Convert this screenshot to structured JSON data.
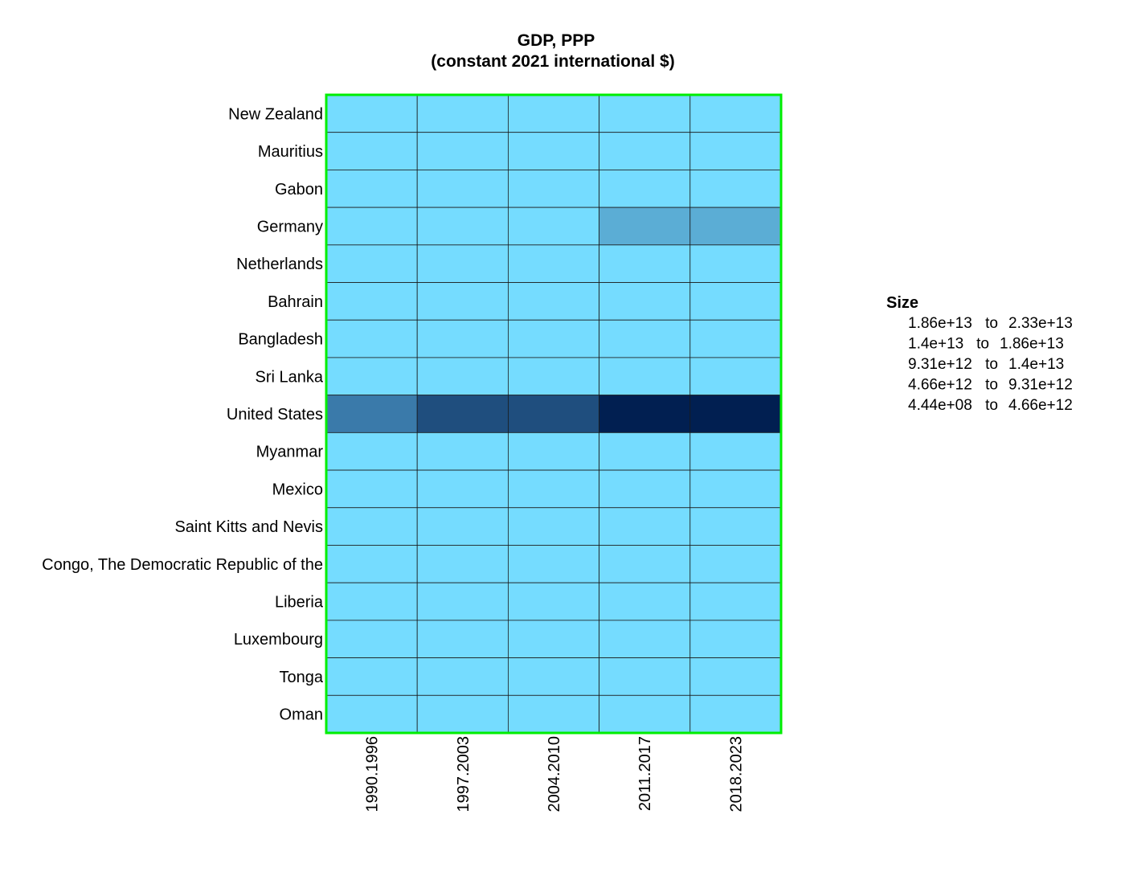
{
  "chart_data": {
    "type": "heatmap",
    "title": "GDP, PPP",
    "subtitle": "(constant 2021 international $)",
    "xlabel": "",
    "ylabel": "",
    "x_categories": [
      "1990.1996",
      "1997.2003",
      "2004.2010",
      "2011.2017",
      "2018.2023"
    ],
    "y_categories": [
      "New Zealand",
      "Mauritius",
      "Gabon",
      "Germany",
      "Netherlands",
      "Bahrain",
      "Bangladesh",
      "Sri Lanka",
      "United States",
      "Myanmar",
      "Mexico",
      "Saint Kitts and Nevis",
      "Congo, The Democratic Republic of the",
      "Liberia",
      "Luxembourg",
      "Tonga",
      "Oman"
    ],
    "values": [
      [
        200000000000.0,
        220000000000.0,
        240000000000.0,
        260000000000.0,
        280000000000.0
      ],
      [
        15000000000.0,
        20000000000.0,
        25000000000.0,
        30000000000.0,
        33000000000.0
      ],
      [
        25000000000.0,
        28000000000.0,
        30000000000.0,
        35000000000.0,
        38000000000.0
      ],
      [
        3900000000000.0,
        4300000000000.0,
        4600000000000.0,
        5000000000000.0,
        5300000000000.0
      ],
      [
        650000000000.0,
        780000000000.0,
        880000000000.0,
        950000000000.0,
        1050000000000.0
      ],
      [
        30000000000.0,
        40000000000.0,
        55000000000.0,
        70000000000.0,
        80000000000.0
      ],
      [
        250000000000.0,
        330000000000.0,
        470000000000.0,
        700000000000.0,
        1100000000000.0
      ],
      [
        80000000000.0,
        110000000000.0,
        150000000000.0,
        230000000000.0,
        280000000000.0
      ],
      [
        11000000000000.0,
        14500000000000.0,
        17500000000000.0,
        19500000000000.0,
        22000000000000.0
      ],
      [
        30000000000.0,
        60000000000.0,
        120000000000.0,
        220000000000.0,
        260000000000.0
      ],
      [
        1500000000000.0,
        1800000000000.0,
        2100000000000.0,
        2400000000000.0,
        2600000000000.0
      ],
      [
        600000000.0,
        800000000.0,
        1000000000.0,
        1200000000.0,
        1400000000.0
      ],
      [
        40000000000.0,
        35000000000.0,
        45000000000.0,
        70000000000.0,
        110000000000.0
      ],
      [
        1500000000.0,
        3000000000.0,
        4500000000.0,
        6500000000.0,
        8000000000.0
      ],
      [
        30000000000.0,
        40000000000.0,
        55000000000.0,
        65000000000.0,
        75000000000.0
      ],
      [
        444000000.0,
        600000000.0,
        800000000.0,
        1000000000.0,
        1100000000.0
      ],
      [
        100000000000.0,
        130000000000.0,
        160000000000.0,
        210000000000.0,
        230000000000.0
      ]
    ],
    "legend": {
      "title": "Size",
      "placement": "right",
      "bins": [
        {
          "from": "1.86e+13",
          "to": "2.33e+13",
          "color": "#011f51"
        },
        {
          "from": "1.4e+13",
          "to": "1.86e+13",
          "color": "#1f4e7e"
        },
        {
          "from": "9.31e+12",
          "to": "1.4e+13",
          "color": "#3a7aaa"
        },
        {
          "from": "4.66e+12",
          "to": "9.31e+12",
          "color": "#5badd5"
        },
        {
          "from": "4.44e+08",
          "to": "4.66e+12",
          "color": "#75dcff"
        }
      ],
      "connector": "to"
    },
    "border_color": "#00ee00",
    "grid": true
  }
}
